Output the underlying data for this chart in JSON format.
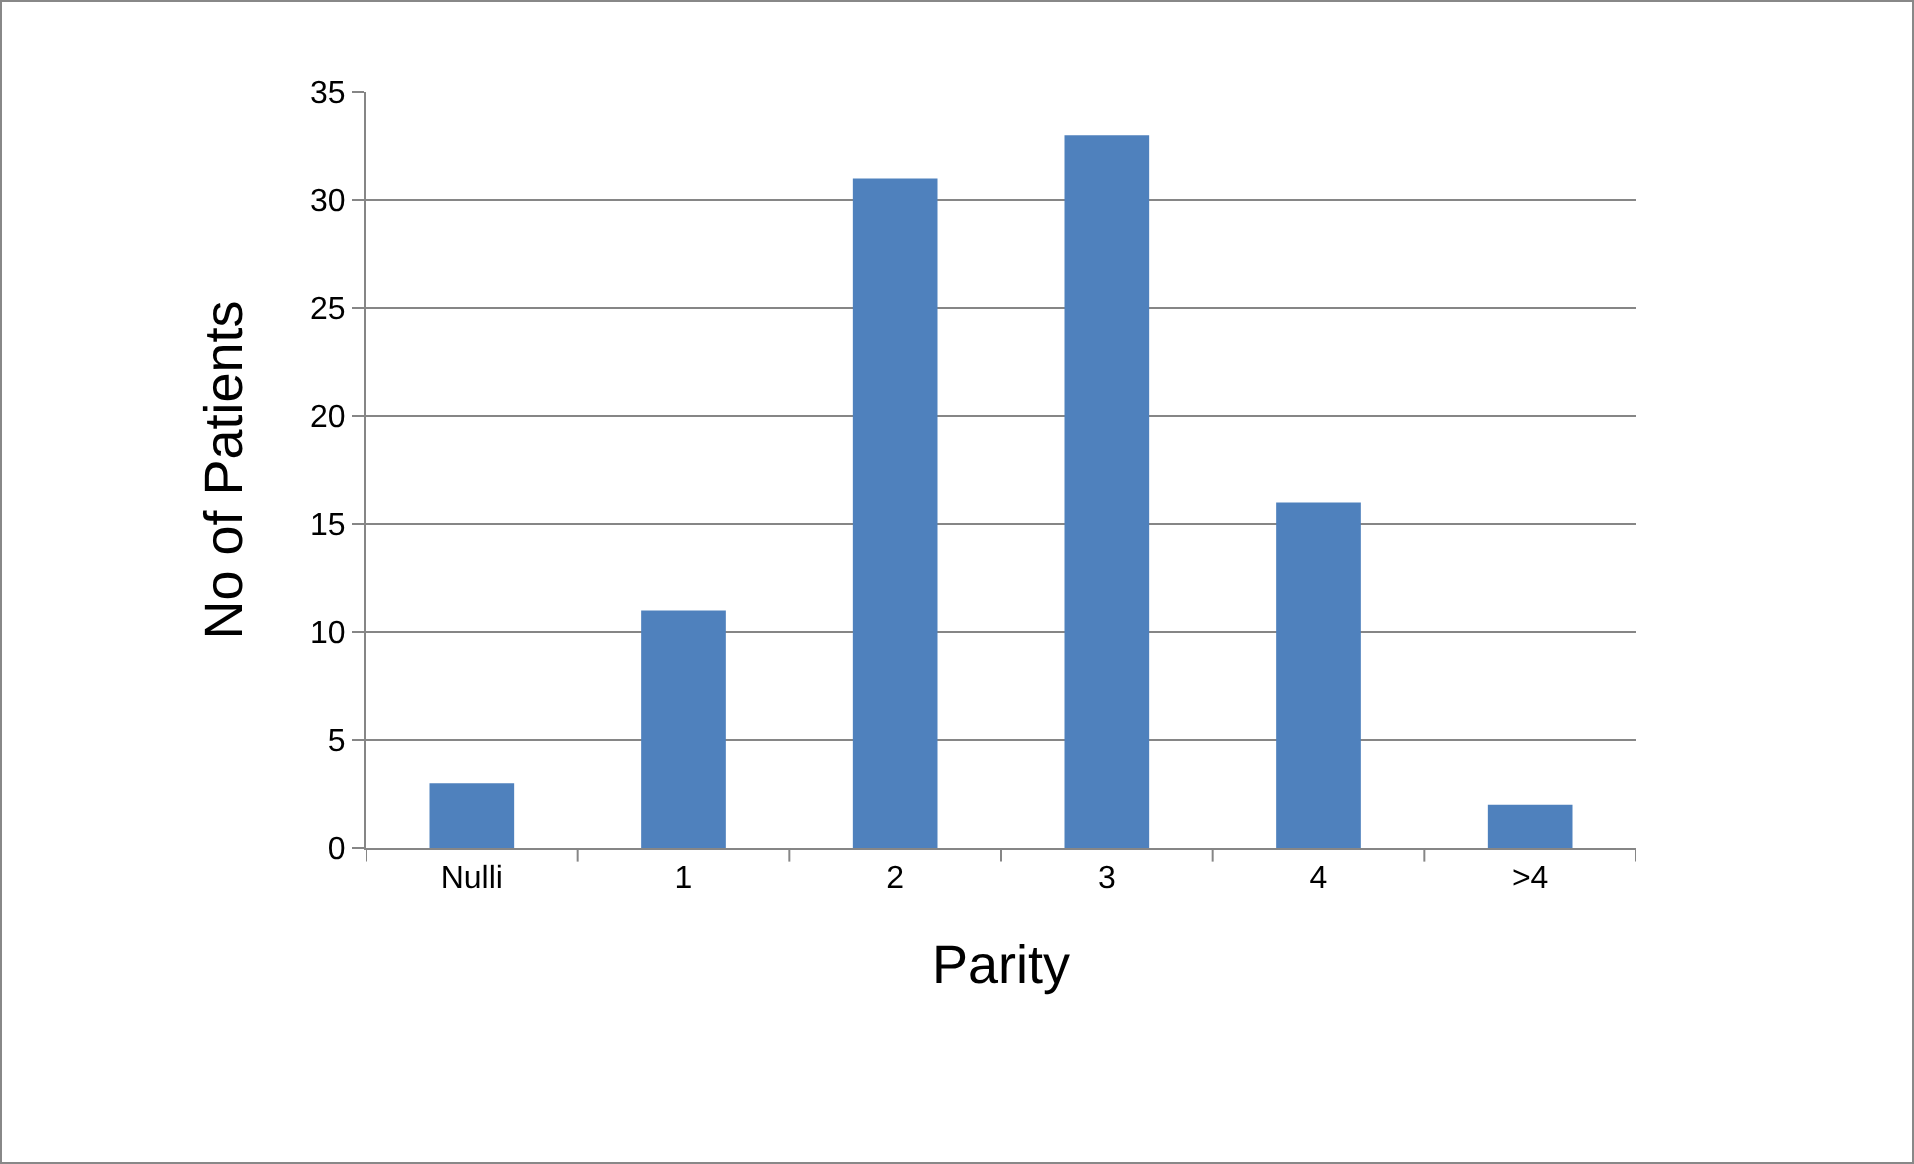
{
  "chart_data": {
    "type": "bar",
    "xlabel": "Parity",
    "ylabel": "No of Patients",
    "categories": [
      "Nulli",
      "1",
      "2",
      "3",
      "4",
      ">4"
    ],
    "values": [
      3,
      11,
      31,
      33,
      16,
      2
    ],
    "color": "#4f81bd",
    "ylim": [
      0,
      35
    ],
    "yticks": [
      0,
      5,
      10,
      15,
      20,
      25,
      30,
      35
    ],
    "grid": "y",
    "legend": false
  }
}
